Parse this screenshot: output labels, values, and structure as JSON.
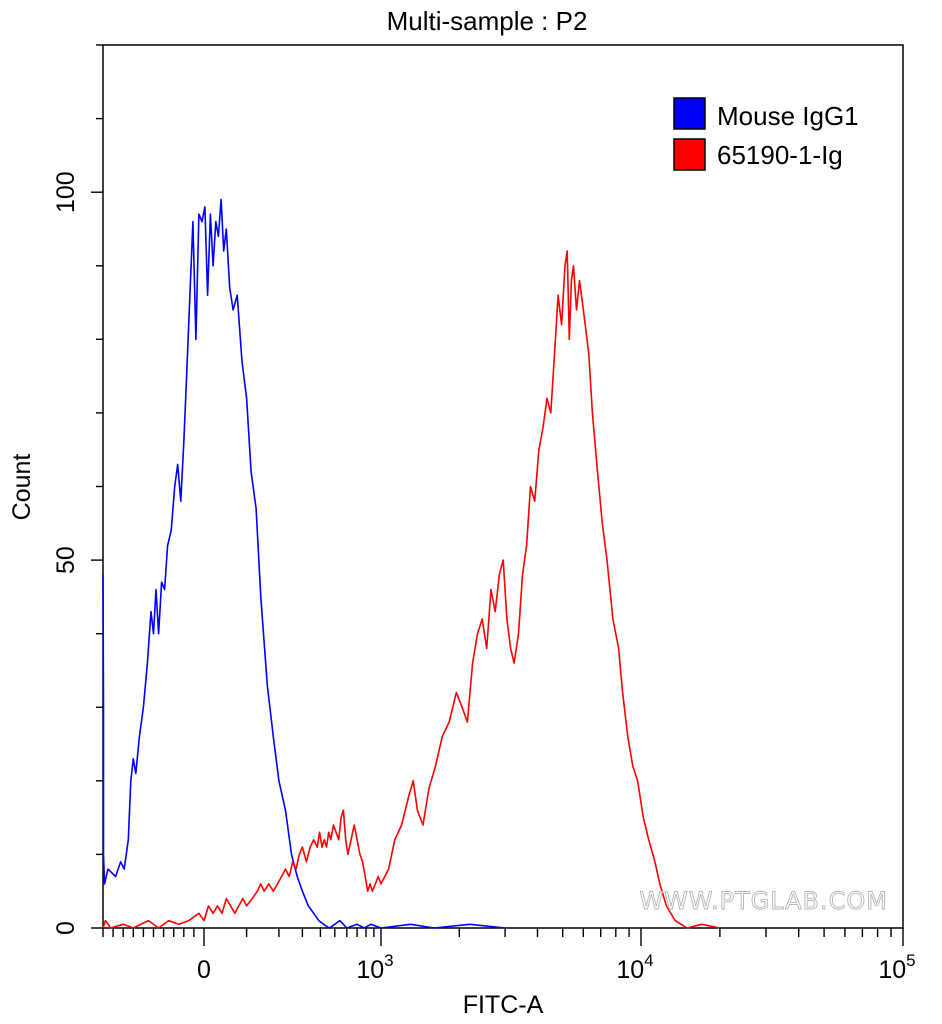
{
  "chart_data": {
    "type": "line",
    "title": "Multi-sample : P2",
    "xlabel": "FITC-A",
    "ylabel": "Count",
    "x_scale": "biexponential",
    "xlim": [
      -200,
      100000
    ],
    "ylim": [
      0,
      120
    ],
    "x_ticks": [
      {
        "value": 0,
        "base": "0",
        "exp": ""
      },
      {
        "value": 1000,
        "base": "10",
        "exp": "3"
      },
      {
        "value": 10000,
        "base": "10",
        "exp": "4"
      },
      {
        "value": 100000,
        "base": "10",
        "exp": "5"
      }
    ],
    "y_ticks": [
      {
        "value": 0,
        "label": "0"
      },
      {
        "value": 50,
        "label": "50"
      },
      {
        "value": 100,
        "label": "100"
      }
    ],
    "legend_position": "top-right",
    "series": [
      {
        "name": "Mouse IgG1",
        "color": "#0000ff",
        "points": [
          [
            -200,
            48
          ],
          [
            -199,
            30
          ],
          [
            -199,
            10
          ],
          [
            -197,
            6
          ],
          [
            -190,
            8
          ],
          [
            -175,
            7
          ],
          [
            -165,
            9
          ],
          [
            -158,
            8
          ],
          [
            -150,
            12
          ],
          [
            -145,
            20
          ],
          [
            -140,
            23
          ],
          [
            -135,
            21
          ],
          [
            -128,
            26
          ],
          [
            -120,
            30
          ],
          [
            -112,
            36
          ],
          [
            -105,
            43
          ],
          [
            -100,
            40
          ],
          [
            -95,
            46
          ],
          [
            -90,
            40
          ],
          [
            -84,
            47
          ],
          [
            -78,
            46
          ],
          [
            -72,
            52
          ],
          [
            -65,
            54
          ],
          [
            -58,
            60
          ],
          [
            -52,
            63
          ],
          [
            -46,
            58
          ],
          [
            -40,
            66
          ],
          [
            -35,
            74
          ],
          [
            -28,
            86
          ],
          [
            -22,
            96
          ],
          [
            -16,
            80
          ],
          [
            -10,
            97
          ],
          [
            -4,
            96
          ],
          [
            2,
            98
          ],
          [
            8,
            86
          ],
          [
            14,
            97
          ],
          [
            20,
            90
          ],
          [
            26,
            96
          ],
          [
            32,
            94
          ],
          [
            38,
            99
          ],
          [
            44,
            92
          ],
          [
            50,
            95
          ],
          [
            58,
            87
          ],
          [
            66,
            84
          ],
          [
            76,
            86
          ],
          [
            88,
            77
          ],
          [
            100,
            72
          ],
          [
            112,
            62
          ],
          [
            126,
            57
          ],
          [
            140,
            45
          ],
          [
            160,
            33
          ],
          [
            180,
            26
          ],
          [
            200,
            20
          ],
          [
            225,
            16
          ],
          [
            250,
            10
          ],
          [
            275,
            7
          ],
          [
            300,
            5
          ],
          [
            330,
            3
          ],
          [
            360,
            2
          ],
          [
            390,
            1
          ],
          [
            420,
            0.5
          ],
          [
            460,
            0
          ],
          [
            540,
            1
          ],
          [
            600,
            0
          ],
          [
            700,
            0.5
          ],
          [
            780,
            0
          ],
          [
            860,
            0.5
          ],
          [
            1000,
            0
          ],
          [
            1300,
            0.5
          ],
          [
            1600,
            0
          ],
          [
            2200,
            0.5
          ],
          [
            3000,
            0
          ]
        ]
      },
      {
        "name": "65190-1-Ig",
        "color": "#ff0000",
        "points": [
          [
            -200,
            0
          ],
          [
            -195,
            1
          ],
          [
            -185,
            0
          ],
          [
            -160,
            0.5
          ],
          [
            -140,
            0
          ],
          [
            -110,
            1
          ],
          [
            -90,
            0
          ],
          [
            -70,
            1
          ],
          [
            -50,
            0.5
          ],
          [
            -30,
            1
          ],
          [
            -10,
            2
          ],
          [
            0,
            1
          ],
          [
            10,
            3
          ],
          [
            20,
            2
          ],
          [
            30,
            3
          ],
          [
            40,
            2
          ],
          [
            50,
            4
          ],
          [
            60,
            3
          ],
          [
            70,
            2
          ],
          [
            80,
            3
          ],
          [
            90,
            4
          ],
          [
            100,
            3
          ],
          [
            115,
            4
          ],
          [
            130,
            5
          ],
          [
            140,
            6
          ],
          [
            150,
            5
          ],
          [
            165,
            6
          ],
          [
            180,
            5
          ],
          [
            195,
            6
          ],
          [
            210,
            7
          ],
          [
            225,
            8
          ],
          [
            240,
            7
          ],
          [
            255,
            9
          ],
          [
            270,
            8
          ],
          [
            285,
            10
          ],
          [
            300,
            11
          ],
          [
            320,
            9
          ],
          [
            340,
            11
          ],
          [
            360,
            12
          ],
          [
            380,
            11
          ],
          [
            395,
            13
          ],
          [
            410,
            11
          ],
          [
            425,
            12
          ],
          [
            440,
            11
          ],
          [
            455,
            13
          ],
          [
            470,
            12
          ],
          [
            490,
            14
          ],
          [
            510,
            13
          ],
          [
            530,
            12
          ],
          [
            550,
            15
          ],
          [
            570,
            16
          ],
          [
            590,
            12
          ],
          [
            610,
            10
          ],
          [
            640,
            12
          ],
          [
            670,
            14
          ],
          [
            700,
            12
          ],
          [
            730,
            10
          ],
          [
            760,
            9
          ],
          [
            790,
            7
          ],
          [
            820,
            5
          ],
          [
            850,
            6
          ],
          [
            880,
            5
          ],
          [
            920,
            6
          ],
          [
            960,
            7
          ],
          [
            1000,
            6
          ],
          [
            1070,
            8
          ],
          [
            1130,
            12
          ],
          [
            1200,
            14
          ],
          [
            1280,
            18
          ],
          [
            1330,
            20
          ],
          [
            1380,
            16
          ],
          [
            1450,
            14
          ],
          [
            1530,
            19
          ],
          [
            1620,
            22
          ],
          [
            1720,
            26
          ],
          [
            1830,
            28
          ],
          [
            1950,
            32
          ],
          [
            2050,
            30
          ],
          [
            2150,
            28
          ],
          [
            2250,
            36
          ],
          [
            2350,
            40
          ],
          [
            2450,
            42
          ],
          [
            2550,
            38
          ],
          [
            2650,
            46
          ],
          [
            2750,
            43
          ],
          [
            2850,
            48
          ],
          [
            2950,
            50
          ],
          [
            3050,
            42
          ],
          [
            3150,
            38
          ],
          [
            3250,
            36
          ],
          [
            3380,
            40
          ],
          [
            3500,
            48
          ],
          [
            3630,
            52
          ],
          [
            3760,
            60
          ],
          [
            3900,
            58
          ],
          [
            4050,
            65
          ],
          [
            4200,
            68
          ],
          [
            4350,
            72
          ],
          [
            4500,
            70
          ],
          [
            4650,
            78
          ],
          [
            4800,
            86
          ],
          [
            4950,
            82
          ],
          [
            5100,
            90
          ],
          [
            5200,
            92
          ],
          [
            5300,
            80
          ],
          [
            5400,
            88
          ],
          [
            5500,
            90
          ],
          [
            5650,
            84
          ],
          [
            5800,
            88
          ],
          [
            5950,
            85
          ],
          [
            6100,
            82
          ],
          [
            6300,
            78
          ],
          [
            6500,
            70
          ],
          [
            6800,
            62
          ],
          [
            7100,
            55
          ],
          [
            7400,
            50
          ],
          [
            7800,
            42
          ],
          [
            8200,
            38
          ],
          [
            8500,
            32
          ],
          [
            8900,
            26
          ],
          [
            9300,
            22
          ],
          [
            9700,
            20
          ],
          [
            10200,
            15
          ],
          [
            10700,
            12
          ],
          [
            11300,
            9
          ],
          [
            11800,
            6
          ],
          [
            12500,
            3
          ],
          [
            13500,
            1
          ],
          [
            15000,
            0
          ],
          [
            17000,
            0.5
          ],
          [
            20000,
            0
          ]
        ]
      }
    ]
  },
  "watermark": "WWW.PTGLAB.COM"
}
